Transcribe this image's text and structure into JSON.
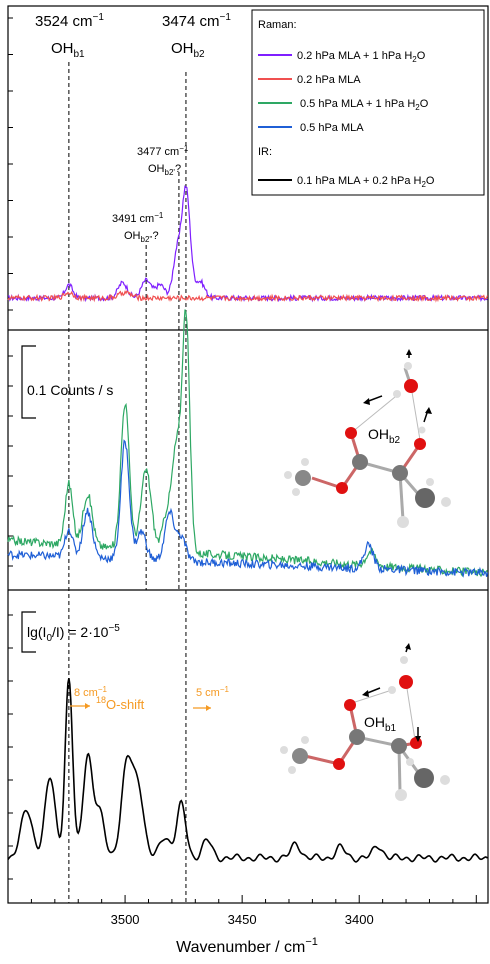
{
  "chart_data": {
    "type": "line",
    "xlabel": "Wavenumber / cm",
    "xlabel_sup": "−1",
    "xlim": [
      3550,
      3345
    ],
    "x_ticks": [
      3500,
      3450,
      3400
    ],
    "x_tick_labels": [
      "3500",
      "3450",
      "3400"
    ],
    "reference_lines": [
      {
        "x": 3524,
        "label": "3524 cm",
        "sup": "−1",
        "mode_base": "OH",
        "mode_sub": "b1"
      },
      {
        "x": 3474,
        "label": "3474 cm",
        "sup": "−1",
        "mode_base": "OH",
        "mode_sub": "b2"
      },
      {
        "x": 3477,
        "label": "3477 cm",
        "sup": "−1",
        "mode_base": "OH",
        "mode_sub": "b2'",
        "suffix": "?"
      },
      {
        "x": 3491,
        "label": "3491 cm",
        "sup": "−1",
        "mode_base": "OH",
        "mode_sub": "b2''",
        "suffix": "?"
      }
    ],
    "legend": {
      "position": "top-right",
      "raman_heading": "Raman:",
      "ir_heading": "IR:",
      "entries": [
        {
          "text": "0.2 hPa MLA + 1 hPa H",
          "sub": "2",
          "tail": "O",
          "color": "#7f1fff"
        },
        {
          "text": "0.2 hPa MLA",
          "sub": "",
          "tail": "",
          "color": "#f05050"
        },
        {
          "text": "0.5 hPa MLA + 1 hPa H",
          "sub": "2",
          "tail": "O",
          "color": "#2ea864"
        },
        {
          "text": "0.5 hPa MLA",
          "sub": "",
          "tail": "",
          "color": "#1f5fd6"
        },
        {
          "text": "0.1 hPa MLA + 0.2 hPa H",
          "sub": "2",
          "tail": "O",
          "color": "#000000"
        }
      ]
    },
    "scale_bars": {
      "raman": "0.1 Counts / s",
      "ir_prefix": "lg(I",
      "ir_sub0": "0",
      "ir_mid": "/I) = 2·10",
      "ir_sup": "−5"
    },
    "annotations": {
      "shift_left": "8 cm",
      "shift_left_sup": "−1",
      "shift_center_sup": "18",
      "shift_center": "O-shift",
      "shift_right": "5 cm",
      "shift_right_sup": "−1",
      "mol_label_top_base": "OH",
      "mol_label_top_sub": "b2",
      "mol_label_bottom_base": "OH",
      "mol_label_bottom_sub": "b1",
      "accent_color": "#f59a23"
    },
    "series": [
      {
        "panel": "top",
        "color": "#7f1fff",
        "noise": 0.045,
        "baseline": 0.0,
        "peaks": [
          [
            3524,
            0.12,
            1.6
          ],
          [
            3501,
            0.14,
            2.0
          ],
          [
            3491,
            0.16,
            2.0
          ],
          [
            3485,
            0.12,
            2.0
          ],
          [
            3478,
            0.38,
            1.6
          ],
          [
            3474,
            1.0,
            1.8
          ],
          [
            3468,
            0.15,
            2.0
          ]
        ]
      },
      {
        "panel": "top",
        "color": "#f05050",
        "noise": 0.045,
        "baseline": 0.0,
        "peaks": [
          [
            3524,
            0.05,
            2.0
          ],
          [
            3500,
            0.05,
            2.5
          ]
        ]
      },
      {
        "panel": "middle",
        "color": "#2ea864",
        "noise": 0.035,
        "baseline": 0.14,
        "peaks": [
          [
            3524,
            0.26,
            1.6
          ],
          [
            3516,
            0.22,
            2.0
          ],
          [
            3500,
            0.62,
            1.8
          ],
          [
            3491,
            0.34,
            2.2
          ],
          [
            3482,
            0.16,
            2.0
          ],
          [
            3478,
            0.42,
            1.8
          ],
          [
            3474,
            1.0,
            1.6
          ],
          [
            3395,
            0.06,
            2.0
          ]
        ]
      },
      {
        "panel": "middle",
        "color": "#1f5fd6",
        "noise": 0.035,
        "baseline": 0.08,
        "peaks": [
          [
            3524,
            0.12,
            1.6
          ],
          [
            3516,
            0.2,
            2.0
          ],
          [
            3500,
            0.5,
            1.8
          ],
          [
            3493,
            0.12,
            2.0
          ],
          [
            3481,
            0.2,
            2.0
          ],
          [
            3476,
            0.1,
            2.0
          ],
          [
            3396,
            0.1,
            2.0
          ]
        ]
      },
      {
        "panel": "bottom",
        "color": "#000000",
        "noise": 0.0,
        "baseline": 0.0,
        "peaks": [
          [
            3542,
            0.27,
            2.5
          ],
          [
            3532,
            0.45,
            2.2
          ],
          [
            3524,
            1.0,
            1.6
          ],
          [
            3516,
            0.57,
            2.0
          ],
          [
            3511,
            0.25,
            2.2
          ],
          [
            3499,
            0.54,
            2.5
          ],
          [
            3494,
            0.35,
            2.2
          ],
          [
            3483,
            0.12,
            2.2
          ],
          [
            3476,
            0.3,
            2.0
          ],
          [
            3465,
            0.1,
            2.0
          ],
          [
            3427,
            0.08,
            2.0
          ],
          [
            3408,
            0.06,
            2.0
          ],
          [
            3392,
            0.07,
            2.0
          ]
        ]
      }
    ]
  }
}
